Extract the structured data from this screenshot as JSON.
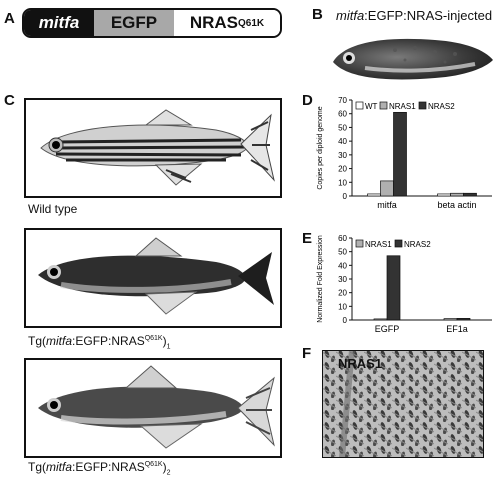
{
  "panels": {
    "a": {
      "letter": "A"
    },
    "b": {
      "letter": "B"
    },
    "c": {
      "letter": "C"
    },
    "d": {
      "letter": "D"
    },
    "e": {
      "letter": "E"
    },
    "f": {
      "letter": "F"
    }
  },
  "construct": {
    "mitfa": "mitfa",
    "egfp": "EGFP",
    "nras": "NRAS",
    "nras_sup": "Q61K"
  },
  "panel_b": {
    "title_italic": "mitfa",
    "title_rest": ":EGFP:NRAS-injected"
  },
  "panel_c": {
    "wild_type": "Wild type",
    "tg_prefix": "Tg(",
    "tg_italic": "mitfa",
    "tg_mid": ":EGFP:NRAS",
    "tg_sup": "Q61K",
    "tg_close": ")",
    "sub1": "1",
    "sub2": "2"
  },
  "panel_f": {
    "label": "NRAS1"
  },
  "colors": {
    "wt": "#ffffff",
    "nras1": "#b0b0b0",
    "nras2": "#333333"
  },
  "chart_data": [
    {
      "type": "bar",
      "panel": "D",
      "categories": [
        "mitfa",
        "beta actin"
      ],
      "series": [
        {
          "name": "WT",
          "values": [
            1.5,
            1.5
          ]
        },
        {
          "name": "NRAS1",
          "values": [
            11,
            2
          ]
        },
        {
          "name": "NRAS2",
          "values": [
            61,
            2
          ]
        }
      ],
      "ylabel": "Copies per diploid genome",
      "ylim": [
        0,
        70
      ],
      "yticks": [
        0,
        10,
        20,
        30,
        40,
        50,
        60,
        70
      ],
      "legend": "top"
    },
    {
      "type": "bar",
      "panel": "E",
      "categories": [
        "EGFP",
        "EF1a"
      ],
      "series": [
        {
          "name": "NRAS1",
          "values": [
            0.8,
            1
          ]
        },
        {
          "name": "NRAS2",
          "values": [
            47,
            1.2
          ]
        }
      ],
      "ylabel": "Normalized Fold Expression",
      "ylim": [
        0,
        60
      ],
      "yticks": [
        0,
        10,
        20,
        30,
        40,
        50,
        60
      ],
      "legend": "top"
    }
  ]
}
